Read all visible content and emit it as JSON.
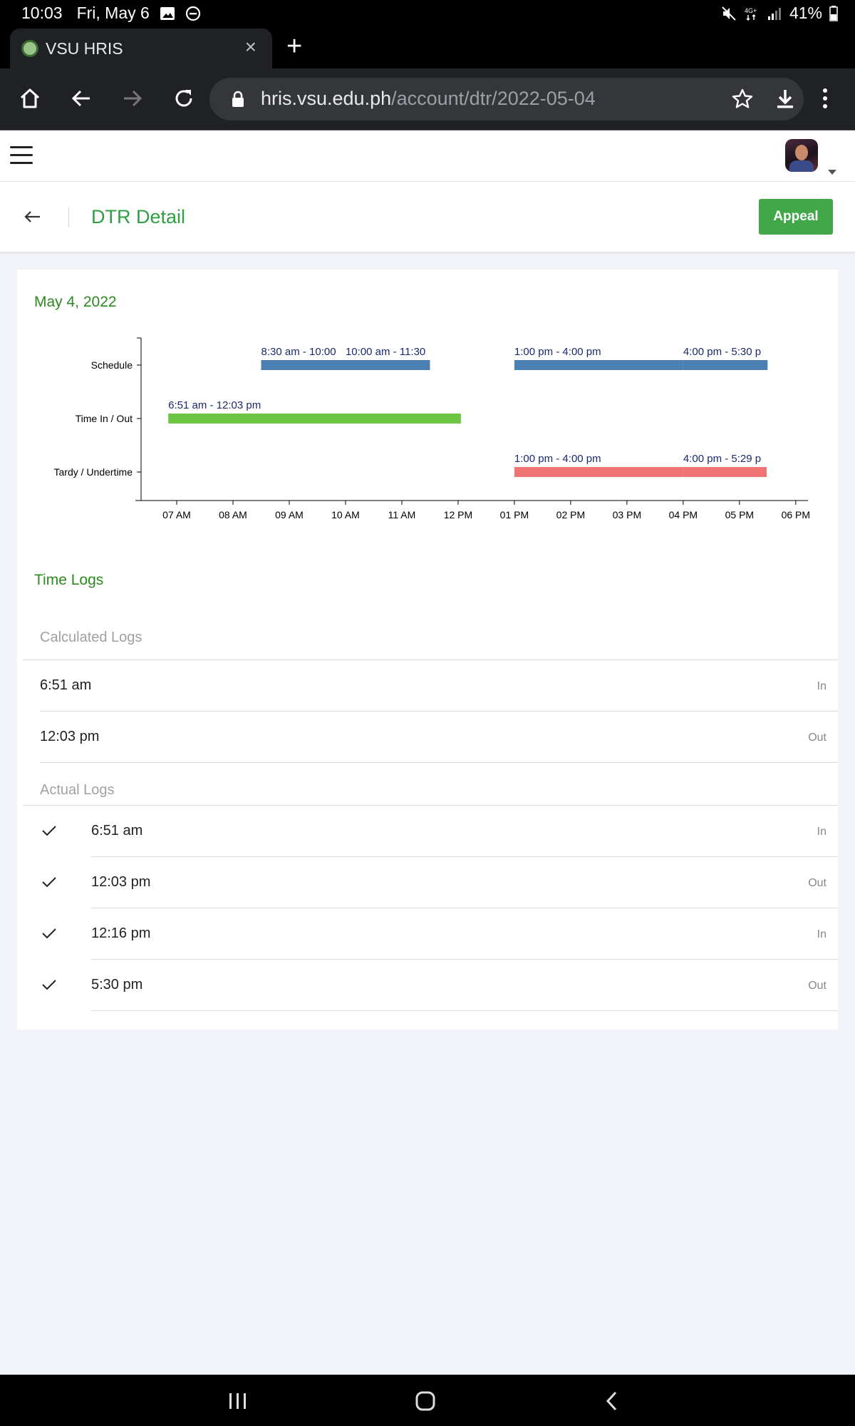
{
  "status_bar": {
    "time": "10:03",
    "date": "Fri, May 6",
    "battery": "41%"
  },
  "browser": {
    "tab_title": "VSU HRIS",
    "url_host": "hris.vsu.edu.ph",
    "url_path": "/account/dtr/2022-05-04"
  },
  "header": {
    "title": "DTR Detail",
    "appeal_label": "Appeal"
  },
  "main": {
    "date": "May 4, 2022",
    "time_logs_title": "Time Logs",
    "calculated_label": "Calculated Logs",
    "actual_label": "Actual Logs",
    "calculated_logs": [
      {
        "time": "6:51 am",
        "type": "In"
      },
      {
        "time": "12:03 pm",
        "type": "Out"
      }
    ],
    "actual_logs": [
      {
        "time": "6:51 am",
        "type": "In"
      },
      {
        "time": "12:03 pm",
        "type": "Out"
      },
      {
        "time": "12:16 pm",
        "type": "In"
      },
      {
        "time": "5:30 pm",
        "type": "Out"
      }
    ]
  },
  "colors": {
    "schedule": "#4a80b4",
    "time_in_out": "#6cc644",
    "tardy": "#f07474",
    "accent_green": "#2f9e44",
    "label_text": "#1a2a6c"
  },
  "chart_data": {
    "type": "timeline",
    "categories": [
      "Schedule",
      "Time In / Out",
      "Tardy / Undertime"
    ],
    "x_ticks": [
      "07 AM",
      "08 AM",
      "09 AM",
      "10 AM",
      "11 AM",
      "12 PM",
      "01 PM",
      "02 PM",
      "03 PM",
      "04 PM",
      "05 PM",
      "06 PM"
    ],
    "xlim": [
      "06:22",
      "18:10"
    ],
    "series": [
      {
        "category": "Schedule",
        "start": "08:30",
        "end": "10:00",
        "label": "8:30 am - 10:00"
      },
      {
        "category": "Schedule",
        "start": "10:00",
        "end": "11:30",
        "label": "10:00 am - 11:30"
      },
      {
        "category": "Schedule",
        "start": "13:00",
        "end": "16:00",
        "label": "1:00 pm - 4:00 pm"
      },
      {
        "category": "Schedule",
        "start": "16:00",
        "end": "17:30",
        "label": "4:00 pm - 5:30 p"
      },
      {
        "category": "Time In / Out",
        "start": "06:51",
        "end": "12:03",
        "label": "6:51 am - 12:03 pm"
      },
      {
        "category": "Tardy / Undertime",
        "start": "13:00",
        "end": "16:00",
        "label": "1:00 pm - 4:00 pm"
      },
      {
        "category": "Tardy / Undertime",
        "start": "16:00",
        "end": "17:29",
        "label": "4:00 pm - 5:29 p"
      }
    ]
  }
}
